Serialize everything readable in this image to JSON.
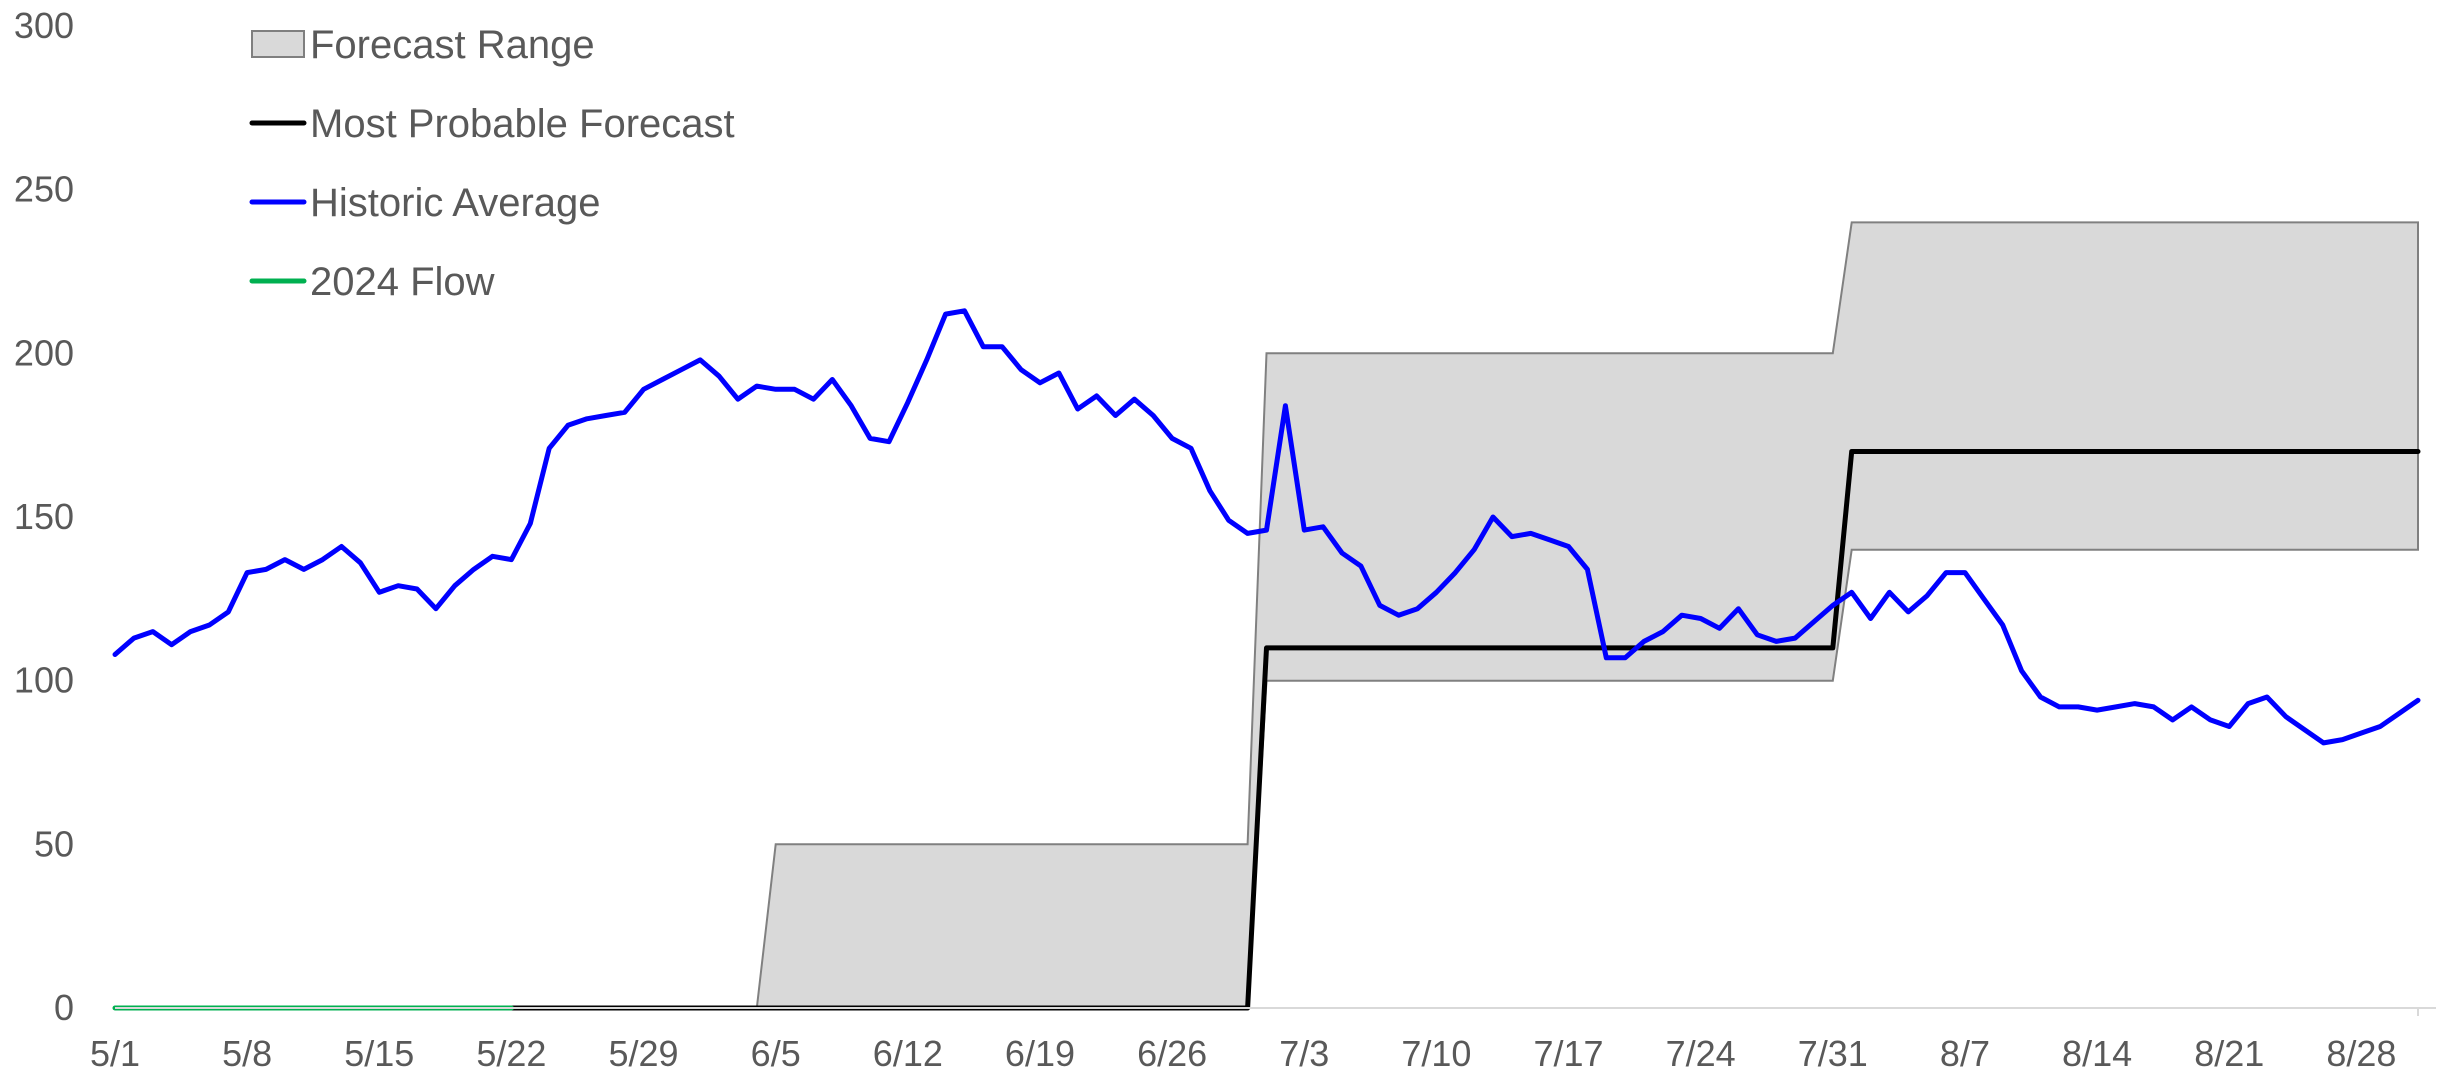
{
  "chart_data": {
    "type": "line",
    "title": "",
    "xlabel": "",
    "ylabel": "",
    "ylim": [
      0,
      300
    ],
    "y_ticks": [
      "0",
      "50",
      "100",
      "150",
      "200",
      "250",
      "300"
    ],
    "x_range": [
      "5/1",
      "8/31"
    ],
    "x_ticks": [
      "5/1",
      "5/8",
      "5/15",
      "5/22",
      "5/29",
      "6/5",
      "6/12",
      "6/19",
      "6/26",
      "7/3",
      "7/10",
      "7/17",
      "7/24",
      "7/31",
      "8/7",
      "8/14",
      "8/21",
      "8/28"
    ],
    "grid": false,
    "legend_position": "top-left",
    "legend": [
      {
        "label": "Forecast Range",
        "kind": "area",
        "color": "#d9d9d9",
        "border": "#7f7f7f"
      },
      {
        "label": "Most Probable Forecast",
        "kind": "line",
        "color": "#000000"
      },
      {
        "label": "Historic Average",
        "kind": "line",
        "color": "#0000ff"
      },
      {
        "label": "2024 Flow",
        "kind": "line",
        "color": "#00b050"
      }
    ],
    "series": [
      {
        "name": "Forecast Range",
        "type": "area",
        "color": "#d9d9d9",
        "x": [
          "6/4",
          "6/5",
          "6/6",
          "6/7",
          "6/8",
          "6/9",
          "6/10",
          "6/11",
          "6/12",
          "6/13",
          "6/14",
          "6/15",
          "6/16",
          "6/17",
          "6/18",
          "6/19",
          "6/20",
          "6/21",
          "6/22",
          "6/23",
          "6/24",
          "6/25",
          "6/26",
          "6/27",
          "6/28",
          "6/29",
          "6/30",
          "7/1",
          "7/2",
          "7/3",
          "7/4",
          "7/5",
          "7/6",
          "7/7",
          "7/8",
          "7/9",
          "7/10",
          "7/11",
          "7/12",
          "7/13",
          "7/14",
          "7/15",
          "7/16",
          "7/17",
          "7/18",
          "7/19",
          "7/20",
          "7/21",
          "7/22",
          "7/23",
          "7/24",
          "7/25",
          "7/26",
          "7/27",
          "7/28",
          "7/29",
          "7/30",
          "7/31",
          "8/1",
          "8/2",
          "8/3",
          "8/4",
          "8/5",
          "8/6",
          "8/7",
          "8/8",
          "8/9",
          "8/10",
          "8/11",
          "8/12",
          "8/13",
          "8/14",
          "8/15",
          "8/16",
          "8/17",
          "8/18",
          "8/19",
          "8/20",
          "8/21",
          "8/22",
          "8/23",
          "8/24",
          "8/25",
          "8/26",
          "8/27",
          "8/28",
          "8/29",
          "8/30",
          "8/31"
        ],
        "low": [
          0,
          0,
          0,
          0,
          0,
          0,
          0,
          0,
          0,
          0,
          0,
          0,
          0,
          0,
          0,
          0,
          0,
          0,
          0,
          0,
          0,
          0,
          0,
          0,
          0,
          0,
          0,
          100,
          100,
          100,
          100,
          100,
          100,
          100,
          100,
          100,
          100,
          100,
          100,
          100,
          100,
          100,
          100,
          100,
          100,
          100,
          100,
          100,
          100,
          100,
          100,
          100,
          100,
          100,
          100,
          100,
          100,
          100,
          140,
          140,
          140,
          140,
          140,
          140,
          140,
          140,
          140,
          140,
          140,
          140,
          140,
          140,
          140,
          140,
          140,
          140,
          140,
          140,
          140,
          140,
          140,
          140,
          140,
          140,
          140,
          140,
          140,
          140,
          140
        ],
        "high": [
          0,
          50,
          50,
          50,
          50,
          50,
          50,
          50,
          50,
          50,
          50,
          50,
          50,
          50,
          50,
          50,
          50,
          50,
          50,
          50,
          50,
          50,
          50,
          50,
          50,
          50,
          50,
          200,
          200,
          200,
          200,
          200,
          200,
          200,
          200,
          200,
          200,
          200,
          200,
          200,
          200,
          200,
          200,
          200,
          200,
          200,
          200,
          200,
          200,
          200,
          200,
          200,
          200,
          200,
          200,
          200,
          200,
          200,
          240,
          240,
          240,
          240,
          240,
          240,
          240,
          240,
          240,
          240,
          240,
          240,
          240,
          240,
          240,
          240,
          240,
          240,
          240,
          240,
          240,
          240,
          240,
          240,
          240,
          240,
          240,
          240,
          240,
          240,
          240
        ]
      },
      {
        "name": "Most Probable Forecast",
        "type": "line",
        "color": "#000000",
        "x": [
          "5/22",
          "6/30",
          "7/1",
          "7/31",
          "8/1",
          "8/31"
        ],
        "values": [
          0,
          0,
          110,
          110,
          170,
          170
        ]
      },
      {
        "name": "Historic Average",
        "type": "line",
        "color": "#0000ff",
        "x": [
          "5/1",
          "5/2",
          "5/3",
          "5/4",
          "5/5",
          "5/6",
          "5/7",
          "5/8",
          "5/9",
          "5/10",
          "5/11",
          "5/12",
          "5/13",
          "5/14",
          "5/15",
          "5/16",
          "5/17",
          "5/18",
          "5/19",
          "5/20",
          "5/21",
          "5/22",
          "5/23",
          "5/24",
          "5/25",
          "5/26",
          "5/27",
          "5/28",
          "5/29",
          "5/30",
          "5/31",
          "6/1",
          "6/2",
          "6/3",
          "6/4",
          "6/5",
          "6/6",
          "6/7",
          "6/8",
          "6/9",
          "6/10",
          "6/11",
          "6/12",
          "6/13",
          "6/14",
          "6/15",
          "6/16",
          "6/17",
          "6/18",
          "6/19",
          "6/20",
          "6/21",
          "6/22",
          "6/23",
          "6/24",
          "6/25",
          "6/26",
          "6/27",
          "6/28",
          "6/29",
          "6/30",
          "7/1",
          "7/2",
          "7/3",
          "7/4",
          "7/5",
          "7/6",
          "7/7",
          "7/8",
          "7/9",
          "7/10",
          "7/11",
          "7/12",
          "7/13",
          "7/14",
          "7/15",
          "7/16",
          "7/17",
          "7/18",
          "7/19",
          "7/20",
          "7/21",
          "7/22",
          "7/23",
          "7/24",
          "7/25",
          "7/26",
          "7/27",
          "7/28",
          "7/29",
          "7/30",
          "7/31",
          "8/1",
          "8/2",
          "8/3",
          "8/4",
          "8/5",
          "8/6",
          "8/7",
          "8/8",
          "8/9",
          "8/10",
          "8/11",
          "8/12",
          "8/13",
          "8/14",
          "8/15",
          "8/16",
          "8/17",
          "8/18",
          "8/19",
          "8/20",
          "8/21",
          "8/22",
          "8/23",
          "8/24",
          "8/25",
          "8/26",
          "8/27",
          "8/28",
          "8/29",
          "8/30",
          "8/31"
        ],
        "values": [
          108,
          113,
          115,
          111,
          115,
          117,
          121,
          133,
          134,
          137,
          134,
          137,
          141,
          136,
          127,
          129,
          128,
          122,
          129,
          134,
          138,
          137,
          148,
          171,
          178,
          180,
          181,
          182,
          189,
          192,
          195,
          198,
          193,
          186,
          190,
          189,
          189,
          186,
          192,
          184,
          174,
          173,
          185,
          198,
          212,
          213,
          202,
          202,
          195,
          191,
          194,
          183,
          187,
          181,
          186,
          181,
          174,
          171,
          158,
          149,
          145,
          146,
          184,
          146,
          147,
          139,
          135,
          123,
          120,
          122,
          127,
          133,
          140,
          150,
          144,
          145,
          143,
          141,
          134,
          107,
          107,
          112,
          115,
          120,
          119,
          116,
          122,
          114,
          112,
          113,
          118,
          123,
          127,
          119,
          127,
          121,
          126,
          133,
          133,
          125,
          117,
          103,
          95,
          92,
          92,
          91,
          92,
          93,
          92,
          88,
          92,
          88,
          86,
          93,
          95,
          89,
          85,
          81,
          82,
          84,
          86,
          90,
          94
        ]
      },
      {
        "name": "2024 Flow",
        "type": "line",
        "color": "#00b050",
        "x": [
          "5/1",
          "5/22"
        ],
        "values": [
          0,
          0
        ]
      }
    ]
  }
}
